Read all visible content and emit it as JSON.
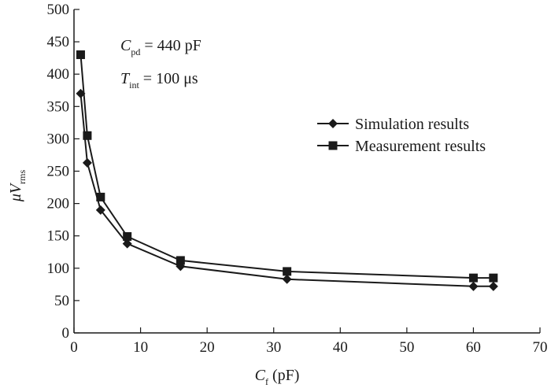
{
  "chart_data": {
    "type": "line",
    "xlim": [
      0,
      70
    ],
    "ylim": [
      0,
      500
    ],
    "xticks": [
      0,
      10,
      20,
      30,
      40,
      50,
      60,
      70
    ],
    "yticks": [
      0,
      50,
      100,
      150,
      200,
      250,
      300,
      350,
      400,
      450,
      500
    ],
    "grid": false,
    "legend_position": "right",
    "xlabel": {
      "main": "C",
      "sub": "f",
      "unit": " (pF)"
    },
    "ylabel": {
      "main": "μV",
      "sub": "rms"
    },
    "annotations": [
      {
        "main": "C",
        "sub": "pd",
        "rest": " = 440 pF"
      },
      {
        "main": "T",
        "sub": "int",
        "rest": " = 100 μs"
      }
    ],
    "series": [
      {
        "name": "Simulation results",
        "marker": "diamond",
        "x": [
          1,
          2,
          4,
          8,
          16,
          32,
          60,
          63
        ],
        "y": [
          370,
          263,
          190,
          138,
          103,
          83,
          72,
          72
        ]
      },
      {
        "name": "Measurement results",
        "marker": "square",
        "x": [
          1,
          2,
          4,
          8,
          16,
          32,
          60,
          63
        ],
        "y": [
          430,
          305,
          210,
          149,
          112,
          95,
          85,
          85
        ]
      }
    ]
  }
}
